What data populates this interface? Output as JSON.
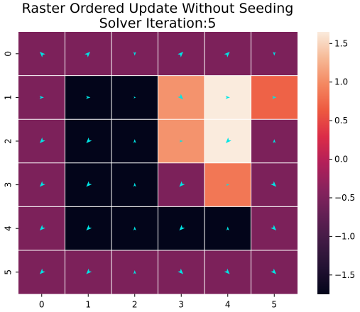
{
  "chart_data": {
    "type": "heatmap",
    "title_lines": [
      "Raster Ordered Update Without Seeding",
      "Solver Iteration:5"
    ],
    "x_tick_labels": [
      "0",
      "1",
      "2",
      "3",
      "4",
      "5"
    ],
    "y_tick_labels": [
      "0",
      "1",
      "2",
      "3",
      "4",
      "5"
    ],
    "values": [
      [
        -0.5,
        -0.5,
        -0.5,
        -0.5,
        -0.5,
        -0.5
      ],
      [
        -0.5,
        -1.75,
        -1.75,
        1.05,
        1.65,
        0.7
      ],
      [
        -0.5,
        -1.75,
        -1.75,
        1.05,
        1.65,
        -0.5
      ],
      [
        -0.5,
        -1.75,
        -1.75,
        -0.5,
        0.85,
        -0.5
      ],
      [
        -0.5,
        -1.75,
        -1.75,
        -1.75,
        -1.75,
        -0.5
      ],
      [
        -0.5,
        -0.5,
        -0.5,
        -0.5,
        -0.5,
        -0.5
      ]
    ],
    "arrows_deg": [
      [
        135,
        45,
        270,
        45,
        45,
        270
      ],
      [
        0,
        0,
        0,
        315,
        0,
        0
      ],
      [
        225,
        225,
        90,
        0,
        225,
        90
      ],
      [
        225,
        225,
        90,
        225,
        0,
        315
      ],
      [
        225,
        225,
        90,
        225,
        90,
        315
      ],
      [
        225,
        225,
        90,
        315,
        315,
        315
      ]
    ],
    "arrow_magnitude": [
      [
        1,
        1,
        0.6,
        1,
        1,
        0.6
      ],
      [
        0.7,
        0.7,
        0.15,
        1,
        0.7,
        0.7
      ],
      [
        1,
        1,
        0.6,
        0.5,
        1,
        0.6
      ],
      [
        1,
        1,
        0.6,
        1,
        0.4,
        1
      ],
      [
        1,
        1,
        0.6,
        1,
        0.6,
        1
      ],
      [
        1,
        1,
        0.6,
        1,
        1,
        1
      ]
    ],
    "colorbar": {
      "min": -1.75,
      "max": 1.65,
      "ticks": [
        1.5,
        1.0,
        0.5,
        0.0,
        -0.5,
        -1.0,
        -1.5
      ],
      "tick_labels": [
        "1.5",
        "1.0",
        "0.5",
        "0.0",
        "−0.5",
        "−1.0",
        "−1.5"
      ]
    },
    "colormap": "rocket",
    "arrow_color": "#00e5e5",
    "grid_line_color": "#ffffff"
  }
}
